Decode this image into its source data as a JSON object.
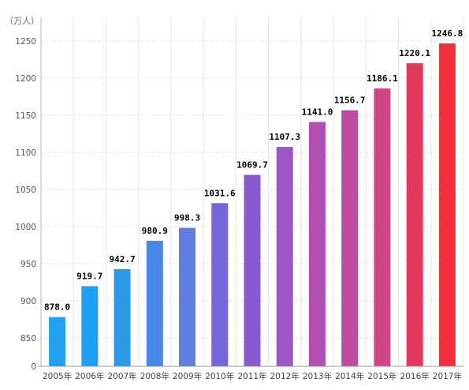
{
  "chart_data": {
    "type": "bar",
    "unit_label": "（万人）",
    "categories": [
      "2005年",
      "2006年",
      "2007年",
      "2008年",
      "2009年",
      "2010年",
      "2011年",
      "2012年",
      "2013年",
      "2014年",
      "2015年",
      "2016年",
      "2017年"
    ],
    "values": [
      878.0,
      919.7,
      942.7,
      980.9,
      998.3,
      1031.6,
      1069.7,
      1107.3,
      1141.0,
      1156.7,
      1186.1,
      1220.1,
      1246.8
    ],
    "value_labels": [
      "878.0",
      "919.7",
      "942.7",
      "980.9",
      "998.3",
      "1031.6",
      "1069.7",
      "1107.3",
      "1141.0",
      "1156.7",
      "1186.1",
      "1220.1",
      "1246.8"
    ],
    "yticks": [
      0,
      850,
      900,
      950,
      1000,
      1050,
      1100,
      1150,
      1200,
      1250
    ],
    "ylim": [
      800,
      1275
    ],
    "axis_break": true,
    "grid": true,
    "bar_colors": [
      "#21a1ef",
      "#1fa0ee",
      "#2d9ae9",
      "#4a87e4",
      "#5e7ee2",
      "#7366db",
      "#8a5bd0",
      "#9f54c4",
      "#b24fb3",
      "#c04aa0",
      "#cf4685",
      "#e0395e",
      "#f23039"
    ]
  }
}
